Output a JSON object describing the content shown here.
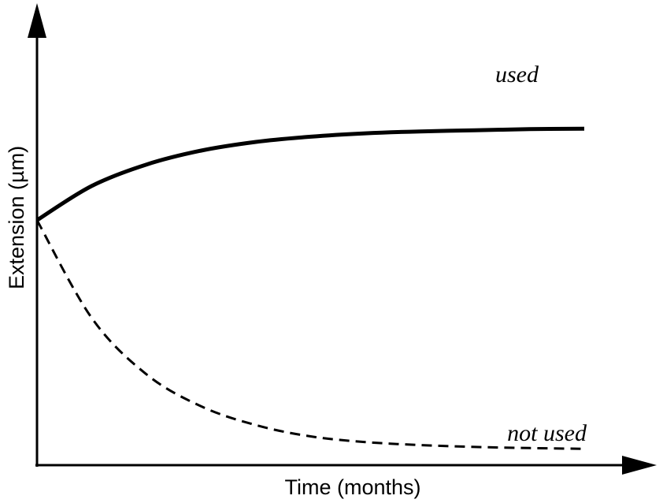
{
  "chart_data": {
    "type": "line",
    "title": "",
    "xlabel": "Time (months)",
    "ylabel": "Extension (µm)",
    "xlim": [
      0,
      10
    ],
    "ylim": [
      0,
      10
    ],
    "x_ticks": false,
    "y_ticks": false,
    "grid": false,
    "legend": "none",
    "series": [
      {
        "name": "used",
        "line_style": "solid",
        "color": "#000000",
        "points": [
          {
            "x": 0,
            "y": 6.2
          },
          {
            "x": 1,
            "y": 7.11
          },
          {
            "x": 2,
            "y": 7.68
          },
          {
            "x": 3,
            "y": 8.05
          },
          {
            "x": 4,
            "y": 8.28
          },
          {
            "x": 5,
            "y": 8.42
          },
          {
            "x": 6,
            "y": 8.51
          },
          {
            "x": 7,
            "y": 8.56
          },
          {
            "x": 8,
            "y": 8.59
          },
          {
            "x": 9,
            "y": 8.62
          },
          {
            "x": 10,
            "y": 8.63
          }
        ]
      },
      {
        "name": "not used",
        "line_style": "dashed",
        "color": "#000000",
        "points": [
          {
            "x": 0,
            "y": 6.2
          },
          {
            "x": 1,
            "y": 3.6
          },
          {
            "x": 2,
            "y": 2.1
          },
          {
            "x": 3,
            "y": 1.25
          },
          {
            "x": 4,
            "y": 0.75
          },
          {
            "x": 5,
            "y": 0.45
          },
          {
            "x": 6,
            "y": 0.3
          },
          {
            "x": 7,
            "y": 0.22
          },
          {
            "x": 8,
            "y": 0.17
          },
          {
            "x": 9,
            "y": 0.14
          },
          {
            "x": 10,
            "y": 0.12
          }
        ]
      }
    ]
  }
}
